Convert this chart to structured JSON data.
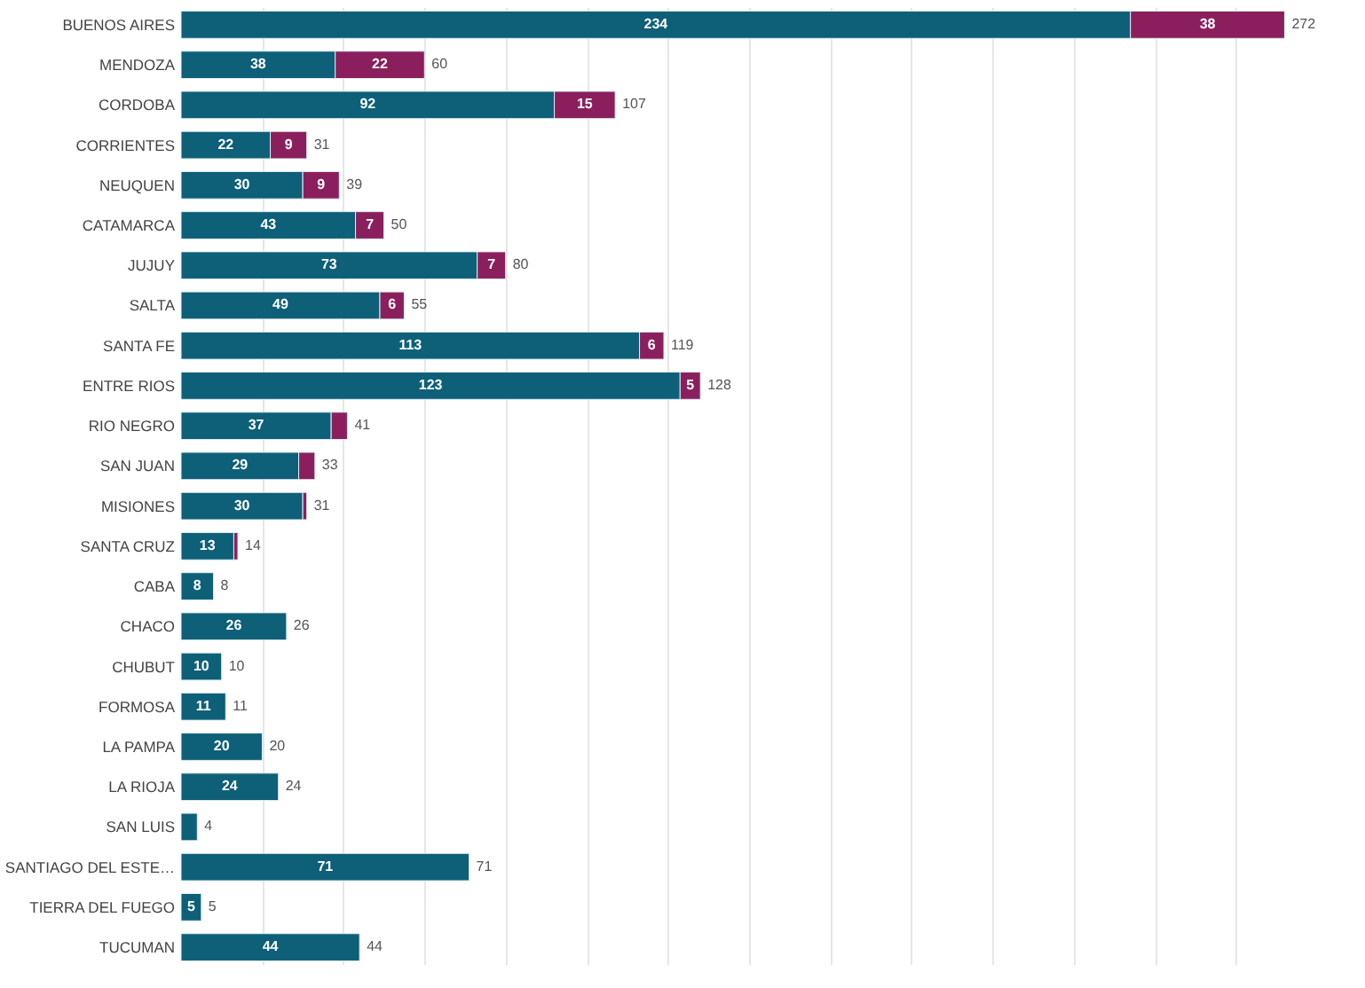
{
  "chart_data": {
    "type": "bar",
    "orientation": "horizontal",
    "stacked": true,
    "categories": [
      "BUENOS AIRES",
      "MENDOZA",
      "CORDOBA",
      "CORRIENTES",
      "NEUQUEN",
      "CATAMARCA",
      "JUJUY",
      "SALTA",
      "SANTA FE",
      "ENTRE RIOS",
      "RIO NEGRO",
      "SAN JUAN",
      "MISIONES",
      "SANTA CRUZ",
      "CABA",
      "CHACO",
      "CHUBUT",
      "FORMOSA",
      "LA PAMPA",
      "LA RIOJA",
      "SAN LUIS",
      "SANTIAGO DEL ESTE…",
      "TIERRA DEL FUEGO",
      "TUCUMAN"
    ],
    "series": [
      {
        "color": "#0e5f78",
        "values": [
          234,
          38,
          92,
          22,
          30,
          43,
          73,
          49,
          113,
          123,
          37,
          29,
          30,
          13,
          8,
          26,
          10,
          11,
          20,
          24,
          4,
          71,
          5,
          44
        ],
        "value_labels": [
          "234",
          "38",
          "92",
          "22",
          "30",
          "43",
          "73",
          "49",
          "113",
          "123",
          "37",
          "29",
          "30",
          "13",
          "8",
          "26",
          "10",
          "11",
          "20",
          "24",
          null,
          "71",
          "5",
          "44"
        ]
      },
      {
        "color": "#8b1f5e",
        "values": [
          38,
          22,
          15,
          9,
          9,
          7,
          7,
          6,
          6,
          5,
          4,
          4,
          1,
          1,
          null,
          null,
          null,
          null,
          null,
          null,
          null,
          null,
          null,
          null
        ],
        "value_labels": [
          "38",
          "22",
          "15",
          "9",
          "9",
          "7",
          "7",
          "6",
          "6",
          "5",
          null,
          null,
          null,
          null,
          null,
          null,
          null,
          null,
          null,
          null,
          null,
          null,
          null,
          null
        ]
      }
    ],
    "totals": [
      "272",
      "60",
      "107",
      "31",
      "39",
      "50",
      "80",
      "55",
      "119",
      "128",
      "41",
      "33",
      "31",
      "14",
      "8",
      "26",
      "10",
      "11",
      "20",
      "24",
      "4",
      "71",
      "5",
      "44"
    ],
    "xlim": [
      0,
      280
    ],
    "xticks": [
      {
        "value": 20,
        "label": null
      },
      {
        "value": 40,
        "label": null
      },
      {
        "value": 60,
        "label": null
      },
      {
        "value": 80,
        "label": null
      },
      {
        "value": 100,
        "label": null
      },
      {
        "value": 120,
        "label": null
      },
      {
        "value": 140,
        "label": null
      },
      {
        "value": 160,
        "label": null
      },
      {
        "value": 180,
        "label": null
      },
      {
        "value": 200,
        "label": null
      },
      {
        "value": 220,
        "label": null
      },
      {
        "value": 240,
        "label": null
      },
      {
        "value": 260,
        "label": null
      }
    ],
    "grid": "x",
    "tick_labels": "y"
  }
}
